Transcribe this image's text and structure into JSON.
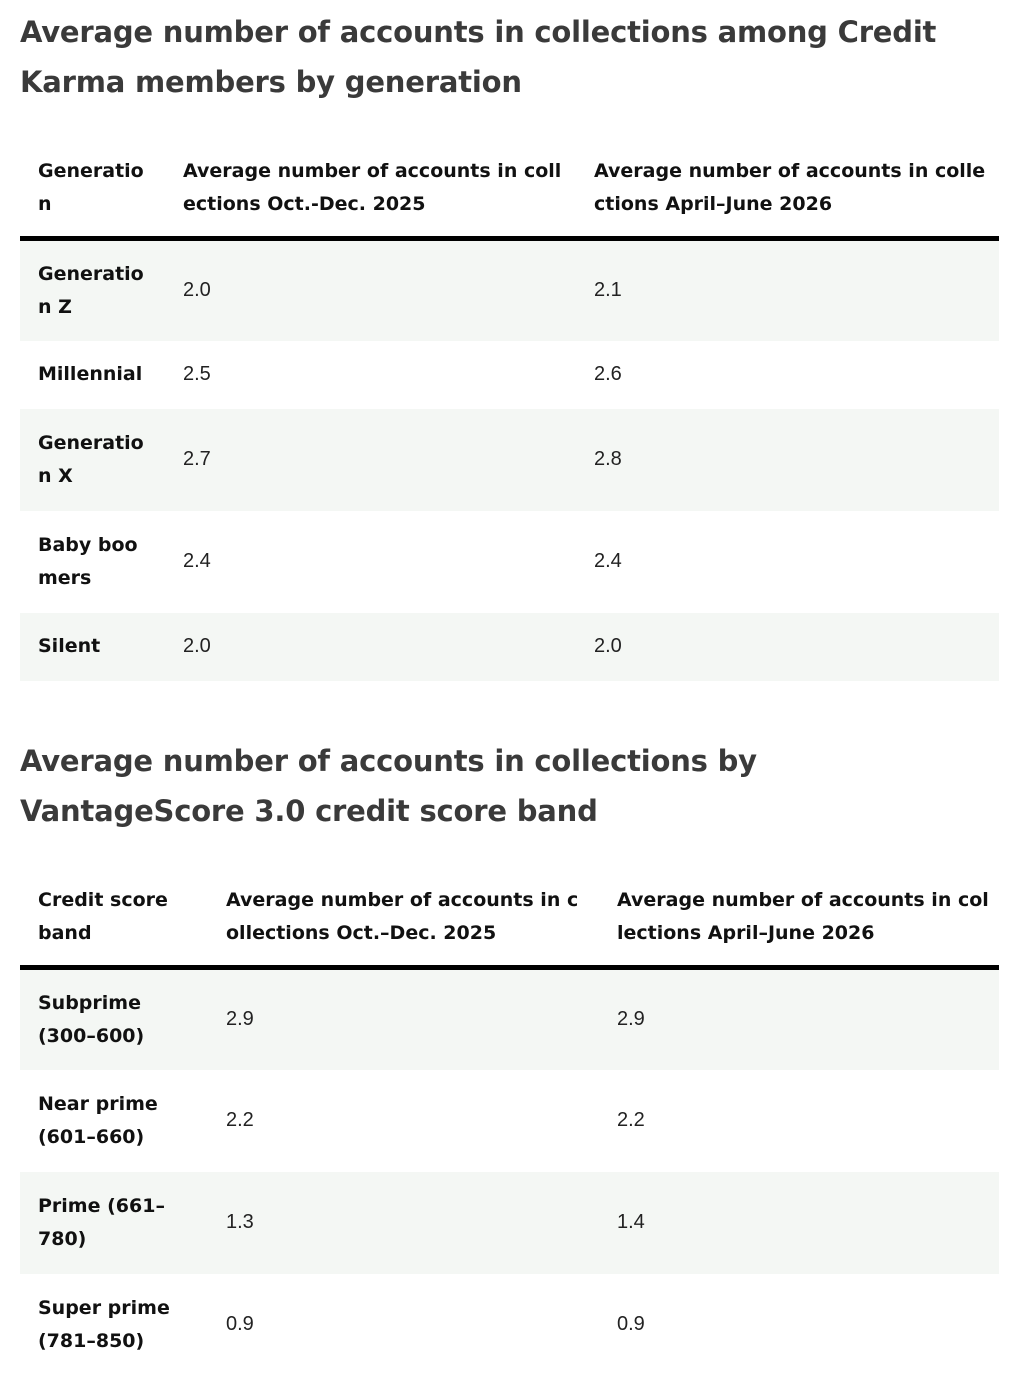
{
  "section1": {
    "title": "Average number of accounts in collections among Credit Karma members by generation",
    "headers": [
      "Generation",
      "Average number of accounts in collections Oct.-Dec. 2025",
      "Average number of accounts in collections April–June 2026"
    ],
    "rows": [
      {
        "label": "Generation Z",
        "oct_dec_2025": "2.0",
        "apr_jun_2026": "2.1"
      },
      {
        "label": "Millennial",
        "oct_dec_2025": "2.5",
        "apr_jun_2026": "2.6"
      },
      {
        "label": "Generation X",
        "oct_dec_2025": "2.7",
        "apr_jun_2026": "2.8"
      },
      {
        "label": "Baby boomers",
        "oct_dec_2025": "2.4",
        "apr_jun_2026": "2.4"
      },
      {
        "label": "Silent",
        "oct_dec_2025": "2.0",
        "apr_jun_2026": "2.0"
      }
    ]
  },
  "section2": {
    "title": "Average number of accounts in collections by VantageScore 3.0 credit score band",
    "headers": [
      "Credit score band",
      "Average number of accounts in collections Oct.–Dec. 2025",
      "Average number of accounts in collections April–June 2026"
    ],
    "rows": [
      {
        "label": "Subprime (300–600)",
        "oct_dec_2025": "2.9",
        "apr_jun_2026": "2.9"
      },
      {
        "label": "Near prime (601–660)",
        "oct_dec_2025": "2.2",
        "apr_jun_2026": "2.2"
      },
      {
        "label": "Prime (661–780)",
        "oct_dec_2025": "1.3",
        "apr_jun_2026": "1.4"
      },
      {
        "label": "Super prime (781–850)",
        "oct_dec_2025": "0.9",
        "apr_jun_2026": "0.9"
      }
    ]
  },
  "colors": {
    "row_shade": "#f4f7f4",
    "header_rule": "#000000",
    "title_text": "#3a3a3a"
  }
}
